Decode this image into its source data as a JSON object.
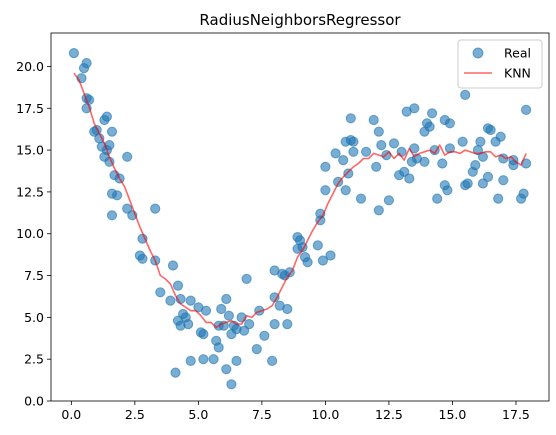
{
  "chart_data": {
    "type": "scatter",
    "title": "RadiusNeighborsRegressor",
    "xlabel": "",
    "ylabel": "",
    "xlim": [
      -0.8,
      18.8
    ],
    "ylim": [
      0,
      22
    ],
    "xticks": [
      0.0,
      2.5,
      5.0,
      7.5,
      10.0,
      12.5,
      15.0,
      17.5
    ],
    "xtick_labels": [
      "0.0",
      "2.5",
      "5.0",
      "7.5",
      "10.0",
      "12.5",
      "15.0",
      "17.5"
    ],
    "yticks": [
      0.0,
      2.5,
      5.0,
      7.5,
      10.0,
      12.5,
      15.0,
      17.5,
      20.0
    ],
    "ytick_labels": [
      "0.0",
      "2.5",
      "5.0",
      "7.5",
      "10.0",
      "12.5",
      "15.0",
      "17.5",
      "20.0"
    ],
    "grid": false,
    "legend_position": "top-right",
    "colors": {
      "real": "#1f77b4",
      "knn": "#ff0000"
    },
    "series": [
      {
        "name": "Real",
        "kind": "scatter",
        "points": [
          [
            0.1,
            20.8
          ],
          [
            0.4,
            19.3
          ],
          [
            0.5,
            19.9
          ],
          [
            0.6,
            20.2
          ],
          [
            0.6,
            18.1
          ],
          [
            0.6,
            17.5
          ],
          [
            0.7,
            18.0
          ],
          [
            0.9,
            16.1
          ],
          [
            1.0,
            16.2
          ],
          [
            1.1,
            15.7
          ],
          [
            1.2,
            15.2
          ],
          [
            1.3,
            16.8
          ],
          [
            1.3,
            14.6
          ],
          [
            1.4,
            17.0
          ],
          [
            1.4,
            15.0
          ],
          [
            1.5,
            15.3
          ],
          [
            1.5,
            14.3
          ],
          [
            1.6,
            16.1
          ],
          [
            1.6,
            12.4
          ],
          [
            1.6,
            11.1
          ],
          [
            1.7,
            13.5
          ],
          [
            1.8,
            12.3
          ],
          [
            1.9,
            13.3
          ],
          [
            2.2,
            14.6
          ],
          [
            2.2,
            11.5
          ],
          [
            2.4,
            11.1
          ],
          [
            2.7,
            8.7
          ],
          [
            2.8,
            9.7
          ],
          [
            2.8,
            8.5
          ],
          [
            3.3,
            11.5
          ],
          [
            3.3,
            8.4
          ],
          [
            3.5,
            6.5
          ],
          [
            3.9,
            6.0
          ],
          [
            4.0,
            8.1
          ],
          [
            4.1,
            1.7
          ],
          [
            4.2,
            6.9
          ],
          [
            4.2,
            4.8
          ],
          [
            4.3,
            6.1
          ],
          [
            4.3,
            4.5
          ],
          [
            4.4,
            5.2
          ],
          [
            4.5,
            5.0
          ],
          [
            4.6,
            4.6
          ],
          [
            4.7,
            6.0
          ],
          [
            4.7,
            2.4
          ],
          [
            5.0,
            5.6
          ],
          [
            5.1,
            4.1
          ],
          [
            5.2,
            4.0
          ],
          [
            5.2,
            2.5
          ],
          [
            5.3,
            5.4
          ],
          [
            5.6,
            2.5
          ],
          [
            5.7,
            3.6
          ],
          [
            5.8,
            4.5
          ],
          [
            5.8,
            3.2
          ],
          [
            5.9,
            5.5
          ],
          [
            6.0,
            4.5
          ],
          [
            6.1,
            6.1
          ],
          [
            6.1,
            1.9
          ],
          [
            6.2,
            5.1
          ],
          [
            6.3,
            4.0
          ],
          [
            6.3,
            1.0
          ],
          [
            6.4,
            4.5
          ],
          [
            6.5,
            4.3
          ],
          [
            6.5,
            2.4
          ],
          [
            6.7,
            5.0
          ],
          [
            6.8,
            4.2
          ],
          [
            6.9,
            7.3
          ],
          [
            7.0,
            4.6
          ],
          [
            7.3,
            3.1
          ],
          [
            7.4,
            5.4
          ],
          [
            7.6,
            3.9
          ],
          [
            7.9,
            2.4
          ],
          [
            8.0,
            4.6
          ],
          [
            8.0,
            6.2
          ],
          [
            8.0,
            7.8
          ],
          [
            8.2,
            5.7
          ],
          [
            8.3,
            7.6
          ],
          [
            8.4,
            7.5
          ],
          [
            8.5,
            5.5
          ],
          [
            8.5,
            4.6
          ],
          [
            8.6,
            7.7
          ],
          [
            8.9,
            9.8
          ],
          [
            8.9,
            9.1
          ],
          [
            9.0,
            9.6
          ],
          [
            9.1,
            9.2
          ],
          [
            9.2,
            8.6
          ],
          [
            9.3,
            8.3
          ],
          [
            9.7,
            9.3
          ],
          [
            9.8,
            10.8
          ],
          [
            9.8,
            11.2
          ],
          [
            9.9,
            8.4
          ],
          [
            10.0,
            14.0
          ],
          [
            10.0,
            12.6
          ],
          [
            10.2,
            8.7
          ],
          [
            10.4,
            14.8
          ],
          [
            10.5,
            13.1
          ],
          [
            10.7,
            14.4
          ],
          [
            10.8,
            12.6
          ],
          [
            10.8,
            15.5
          ],
          [
            10.9,
            13.6
          ],
          [
            11.0,
            15.6
          ],
          [
            11.0,
            16.9
          ],
          [
            11.1,
            15.5
          ],
          [
            11.1,
            14.9
          ],
          [
            11.4,
            12.1
          ],
          [
            11.6,
            14.9
          ],
          [
            11.9,
            16.8
          ],
          [
            12.0,
            14.0
          ],
          [
            12.1,
            16.1
          ],
          [
            12.1,
            11.4
          ],
          [
            12.2,
            15.3
          ],
          [
            12.4,
            14.7
          ],
          [
            12.5,
            12.0
          ],
          [
            12.7,
            15.4
          ],
          [
            12.9,
            13.5
          ],
          [
            13.0,
            14.9
          ],
          [
            13.1,
            13.7
          ],
          [
            13.2,
            17.3
          ],
          [
            13.3,
            13.3
          ],
          [
            13.4,
            14.3
          ],
          [
            13.5,
            15.1
          ],
          [
            13.5,
            17.5
          ],
          [
            13.6,
            14.5
          ],
          [
            13.9,
            16.1
          ],
          [
            13.9,
            14.3
          ],
          [
            14.0,
            16.6
          ],
          [
            14.1,
            16.4
          ],
          [
            14.2,
            17.2
          ],
          [
            14.3,
            15.0
          ],
          [
            14.4,
            12.1
          ],
          [
            14.6,
            14.2
          ],
          [
            14.7,
            16.8
          ],
          [
            14.7,
            12.9
          ],
          [
            14.8,
            12.6
          ],
          [
            14.9,
            15.1
          ],
          [
            14.9,
            16.6
          ],
          [
            15.4,
            15.5
          ],
          [
            15.5,
            18.3
          ],
          [
            15.5,
            12.9
          ],
          [
            15.6,
            13.0
          ],
          [
            15.8,
            13.7
          ],
          [
            15.9,
            14.1
          ],
          [
            16.0,
            15.0
          ],
          [
            16.1,
            15.5
          ],
          [
            16.2,
            13.0
          ],
          [
            16.2,
            14.6
          ],
          [
            16.4,
            13.4
          ],
          [
            16.4,
            16.3
          ],
          [
            16.5,
            16.2
          ],
          [
            16.7,
            15.5
          ],
          [
            16.8,
            12.1
          ],
          [
            16.9,
            15.8
          ],
          [
            17.0,
            14.5
          ],
          [
            17.0,
            13.2
          ],
          [
            17.4,
            14.1
          ],
          [
            17.4,
            14.4
          ],
          [
            17.7,
            12.1
          ],
          [
            17.8,
            12.4
          ],
          [
            17.9,
            14.2
          ],
          [
            17.9,
            17.4
          ]
        ]
      },
      {
        "name": "KNN",
        "kind": "line",
        "points": [
          [
            0.1,
            19.6
          ],
          [
            0.3,
            19.2
          ],
          [
            0.5,
            18.4
          ],
          [
            0.7,
            17.6
          ],
          [
            0.9,
            16.6
          ],
          [
            1.1,
            16.0
          ],
          [
            1.3,
            15.4
          ],
          [
            1.5,
            14.6
          ],
          [
            1.7,
            13.9
          ],
          [
            1.9,
            13.3
          ],
          [
            2.1,
            12.8
          ],
          [
            2.3,
            12.0
          ],
          [
            2.5,
            11.2
          ],
          [
            2.7,
            10.4
          ],
          [
            2.9,
            9.7
          ],
          [
            3.1,
            9.0
          ],
          [
            3.3,
            8.4
          ],
          [
            3.5,
            7.5
          ],
          [
            3.7,
            7.3
          ],
          [
            3.9,
            7.0
          ],
          [
            4.1,
            6.3
          ],
          [
            4.3,
            5.8
          ],
          [
            4.5,
            5.6
          ],
          [
            4.7,
            5.4
          ],
          [
            4.9,
            5.4
          ],
          [
            5.1,
            5.1
          ],
          [
            5.3,
            4.7
          ],
          [
            5.5,
            4.7
          ],
          [
            5.7,
            4.4
          ],
          [
            5.9,
            4.6
          ],
          [
            6.1,
            4.7
          ],
          [
            6.3,
            4.8
          ],
          [
            6.5,
            4.6
          ],
          [
            6.7,
            4.6
          ],
          [
            6.9,
            5.1
          ],
          [
            7.1,
            5.0
          ],
          [
            7.3,
            5.3
          ],
          [
            7.5,
            5.4
          ],
          [
            7.7,
            5.5
          ],
          [
            7.9,
            5.7
          ],
          [
            8.1,
            6.2
          ],
          [
            8.3,
            6.8
          ],
          [
            8.5,
            7.4
          ],
          [
            8.7,
            7.8
          ],
          [
            8.9,
            8.6
          ],
          [
            9.1,
            9.0
          ],
          [
            9.3,
            9.6
          ],
          [
            9.5,
            10.2
          ],
          [
            9.7,
            10.7
          ],
          [
            9.9,
            11.1
          ],
          [
            10.1,
            11.8
          ],
          [
            10.3,
            12.4
          ],
          [
            10.5,
            13.0
          ],
          [
            10.7,
            13.4
          ],
          [
            10.9,
            13.7
          ],
          [
            11.1,
            14.0
          ],
          [
            11.3,
            14.2
          ],
          [
            11.5,
            14.5
          ],
          [
            11.7,
            14.5
          ],
          [
            11.9,
            14.8
          ],
          [
            12.1,
            14.7
          ],
          [
            12.3,
            14.6
          ],
          [
            12.5,
            14.9
          ],
          [
            12.7,
            14.5
          ],
          [
            12.9,
            14.8
          ],
          [
            13.1,
            14.4
          ],
          [
            13.3,
            15.1
          ],
          [
            13.5,
            14.6
          ],
          [
            13.7,
            14.8
          ],
          [
            13.9,
            14.9
          ],
          [
            14.1,
            15.0
          ],
          [
            14.3,
            14.8
          ],
          [
            14.5,
            15.3
          ],
          [
            14.7,
            14.7
          ],
          [
            14.9,
            14.9
          ],
          [
            15.1,
            14.9
          ],
          [
            15.3,
            14.8
          ],
          [
            15.5,
            15.0
          ],
          [
            15.7,
            14.9
          ],
          [
            15.9,
            14.8
          ],
          [
            16.1,
            14.8
          ],
          [
            16.3,
            14.9
          ],
          [
            16.5,
            14.9
          ],
          [
            16.7,
            14.6
          ],
          [
            16.9,
            14.7
          ],
          [
            17.1,
            14.5
          ],
          [
            17.3,
            14.6
          ],
          [
            17.5,
            14.3
          ],
          [
            17.7,
            14.1
          ],
          [
            17.9,
            14.8
          ]
        ]
      }
    ]
  }
}
